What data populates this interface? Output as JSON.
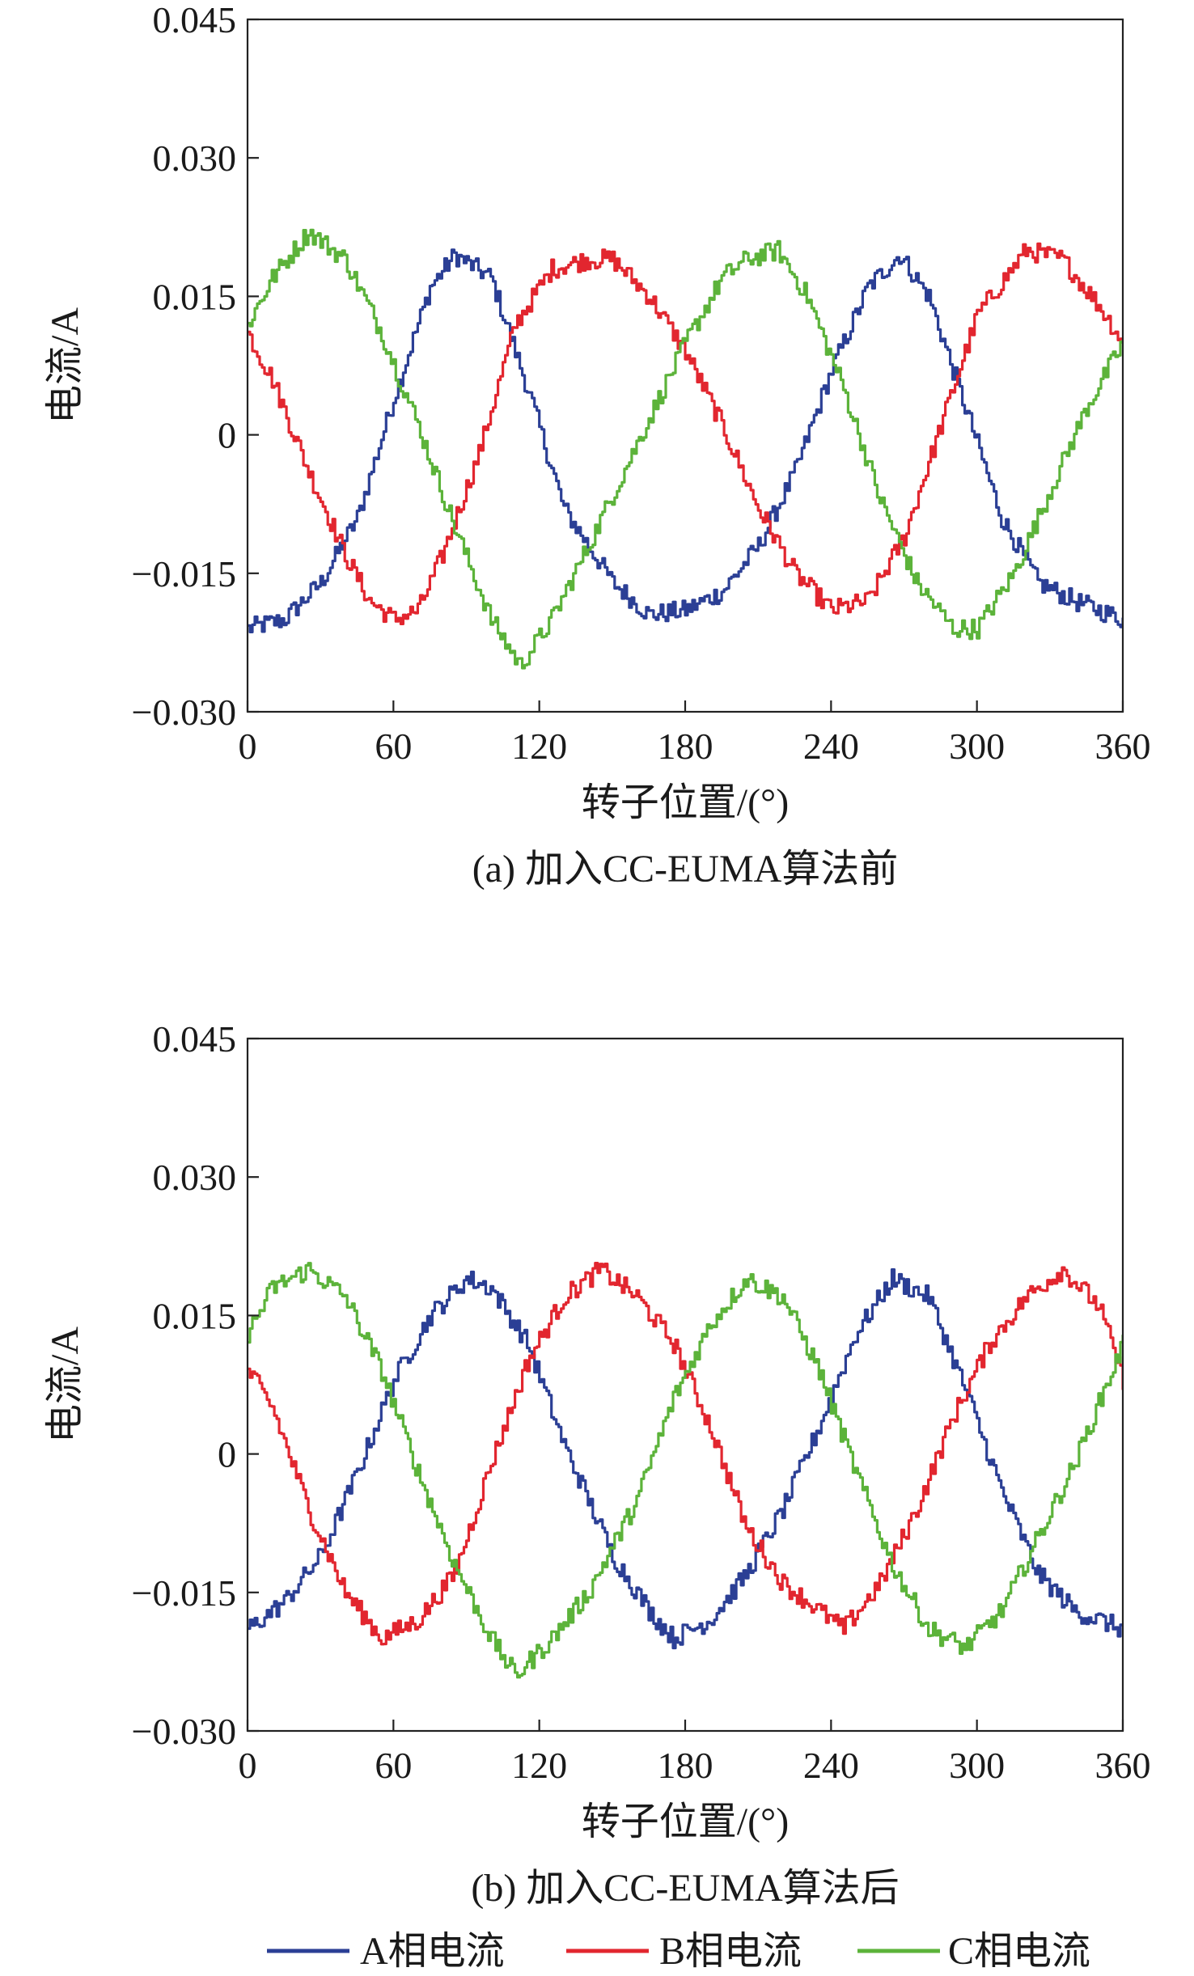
{
  "colors": {
    "A": "#2b3f95",
    "B": "#e2262f",
    "C": "#5cb33a",
    "axis": "#222222"
  },
  "legend": [
    {
      "key": "A",
      "label": "A相电流"
    },
    {
      "key": "B",
      "label": "B相电流"
    },
    {
      "key": "C",
      "label": "C相电流"
    }
  ],
  "chart_data": [
    {
      "type": "line",
      "caption": "(a) 加入CC-EUMA算法前",
      "xlabel": "转子位置/(°)",
      "ylabel": "电流/A",
      "xlim": [
        0,
        360
      ],
      "ylim": [
        -0.03,
        0.045
      ],
      "xticks": [
        0,
        60,
        120,
        180,
        240,
        300,
        360
      ],
      "xtick_labels": [
        "0",
        "60",
        "120",
        "180",
        "240",
        "300",
        "360"
      ],
      "yticks": [
        -0.03,
        -0.015,
        0,
        0.015,
        0.03,
        0.045
      ],
      "ytick_labels": [
        "−0.030",
        "−0.015",
        "0",
        "0.015",
        "0.030",
        "0.045"
      ],
      "series": [
        {
          "key": "A",
          "name": "A相电流",
          "x": [
            0,
            15,
            30,
            45,
            60,
            75,
            85,
            100,
            115,
            130,
            150,
            165,
            180,
            195,
            210,
            225,
            240,
            255,
            268,
            280,
            295,
            310,
            325,
            340,
            360
          ],
          "y": [
            -0.021,
            -0.02,
            -0.016,
            -0.009,
            0.004,
            0.016,
            0.0195,
            0.017,
            0.005,
            -0.008,
            -0.016,
            -0.0195,
            -0.019,
            -0.017,
            -0.012,
            -0.004,
            0.007,
            0.016,
            0.0195,
            0.015,
            0.003,
            -0.009,
            -0.016,
            -0.018,
            -0.02
          ]
        },
        {
          "key": "B",
          "name": "B相电流",
          "x": [
            0,
            10,
            25,
            40,
            50,
            60,
            70,
            80,
            95,
            110,
            125,
            140,
            150,
            165,
            180,
            195,
            210,
            225,
            240,
            255,
            270,
            285,
            300,
            320,
            335,
            350,
            360
          ],
          "y": [
            0.011,
            0.006,
            -0.004,
            -0.013,
            -0.018,
            -0.02,
            -0.019,
            -0.013,
            -0.002,
            0.012,
            0.018,
            0.019,
            0.019,
            0.015,
            0.009,
            0.001,
            -0.008,
            -0.015,
            -0.019,
            -0.018,
            -0.011,
            0.001,
            0.013,
            0.02,
            0.019,
            0.014,
            0.01
          ]
        },
        {
          "key": "C",
          "name": "C相电流",
          "x": [
            0,
            10,
            25,
            40,
            55,
            70,
            85,
            100,
            112,
            125,
            140,
            160,
            180,
            195,
            205,
            218,
            230,
            245,
            260,
            275,
            290,
            300,
            315,
            330,
            345,
            360
          ],
          "y": [
            0.012,
            0.017,
            0.022,
            0.019,
            0.011,
            0.001,
            -0.01,
            -0.02,
            -0.025,
            -0.02,
            -0.012,
            -0.001,
            0.01,
            0.017,
            0.019,
            0.02,
            0.015,
            0.005,
            -0.007,
            -0.016,
            -0.021,
            -0.021,
            -0.015,
            -0.006,
            0.003,
            0.01
          ]
        }
      ]
    },
    {
      "type": "line",
      "caption": "(b) 加入CC-EUMA算法后",
      "xlabel": "转子位置/(°)",
      "ylabel": "电流/A",
      "xlim": [
        0,
        360
      ],
      "ylim": [
        -0.03,
        0.045
      ],
      "xticks": [
        0,
        60,
        120,
        180,
        240,
        300,
        360
      ],
      "xtick_labels": [
        "0",
        "60",
        "120",
        "180",
        "240",
        "300",
        "360"
      ],
      "yticks": [
        -0.03,
        -0.015,
        0,
        0.015,
        0.03,
        0.045
      ],
      "ytick_labels": [
        "−0.030",
        "−0.015",
        "0",
        "0.015",
        "0.030",
        "0.045"
      ],
      "series": [
        {
          "key": "A",
          "name": "A相电流",
          "x": [
            0,
            15,
            30,
            45,
            60,
            75,
            90,
            100,
            115,
            130,
            150,
            165,
            175,
            190,
            205,
            220,
            235,
            250,
            265,
            280,
            295,
            310,
            325,
            340,
            360
          ],
          "y": [
            -0.019,
            -0.016,
            -0.011,
            -0.002,
            0.008,
            0.015,
            0.019,
            0.018,
            0.012,
            0.001,
            -0.011,
            -0.017,
            -0.02,
            -0.018,
            -0.013,
            -0.006,
            0.003,
            0.013,
            0.019,
            0.017,
            0.007,
            -0.004,
            -0.013,
            -0.017,
            -0.019
          ]
        },
        {
          "key": "B",
          "name": "B相电流",
          "x": [
            0,
            10,
            25,
            40,
            55,
            70,
            85,
            100,
            115,
            130,
            145,
            160,
            175,
            190,
            205,
            220,
            235,
            245,
            260,
            275,
            290,
            305,
            320,
            335,
            350,
            360
          ],
          "y": [
            0.009,
            0.005,
            -0.006,
            -0.015,
            -0.02,
            -0.018,
            -0.013,
            -0.001,
            0.01,
            0.017,
            0.02,
            0.017,
            0.012,
            0.003,
            -0.008,
            -0.014,
            -0.017,
            -0.019,
            -0.014,
            -0.006,
            0.004,
            0.012,
            0.017,
            0.02,
            0.016,
            0.008
          ]
        },
        {
          "key": "C",
          "name": "C相电流",
          "x": [
            0,
            10,
            25,
            40,
            55,
            70,
            85,
            100,
            110,
            125,
            140,
            160,
            175,
            190,
            205,
            220,
            235,
            250,
            265,
            280,
            295,
            310,
            325,
            340,
            360
          ],
          "y": [
            0.013,
            0.018,
            0.02,
            0.017,
            0.009,
            -0.002,
            -0.012,
            -0.02,
            -0.024,
            -0.02,
            -0.015,
            -0.005,
            0.006,
            0.014,
            0.019,
            0.017,
            0.009,
            -0.002,
            -0.012,
            -0.019,
            -0.021,
            -0.017,
            -0.009,
            -0.001,
            0.012
          ]
        }
      ]
    }
  ]
}
